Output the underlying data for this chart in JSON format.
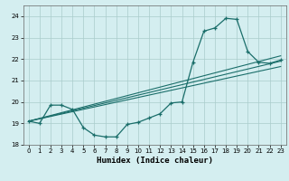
{
  "title": "",
  "xlabel": "Humidex (Indice chaleur)",
  "bg_color": "#d4eef0",
  "grid_color": "#aacccc",
  "line_color": "#1a6e6a",
  "xlim": [
    -0.5,
    23.5
  ],
  "ylim": [
    18.0,
    24.5
  ],
  "yticks": [
    18,
    19,
    20,
    21,
    22,
    23,
    24
  ],
  "xticks": [
    0,
    1,
    2,
    3,
    4,
    5,
    6,
    7,
    8,
    9,
    10,
    11,
    12,
    13,
    14,
    15,
    16,
    17,
    18,
    19,
    20,
    21,
    22,
    23
  ],
  "curve_x": [
    0,
    1,
    2,
    3,
    4,
    5,
    6,
    7,
    8,
    9,
    10,
    11,
    12,
    13,
    14,
    15,
    16,
    17,
    18,
    19,
    20,
    21,
    22,
    23
  ],
  "curve_y": [
    19.1,
    19.0,
    19.85,
    19.85,
    19.65,
    18.8,
    18.45,
    18.37,
    18.37,
    18.95,
    19.05,
    19.25,
    19.45,
    19.95,
    20.0,
    21.85,
    23.3,
    23.45,
    23.9,
    23.85,
    22.35,
    21.85,
    21.8,
    21.95
  ],
  "line1_x": [
    0,
    23
  ],
  "line1_y": [
    19.1,
    21.9
  ],
  "line2_x": [
    0,
    23
  ],
  "line2_y": [
    19.1,
    22.15
  ],
  "line3_x": [
    0,
    23
  ],
  "line3_y": [
    19.1,
    21.65
  ]
}
